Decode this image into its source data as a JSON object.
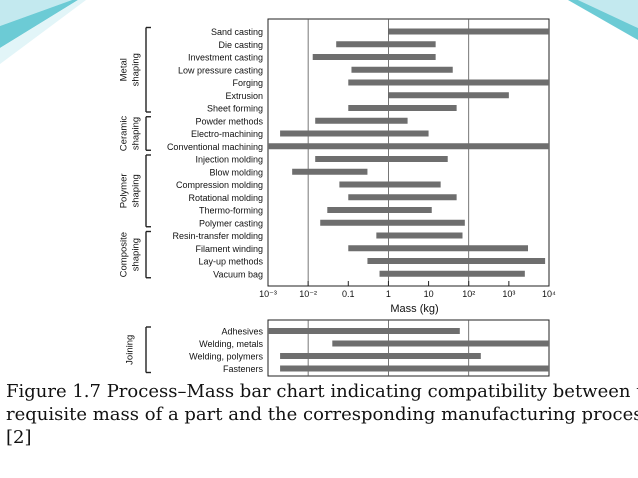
{
  "slide": {
    "caption_lines": [
      "Figure 1.7   Process–Mass bar chart indicating compatibility between t",
      "requisite mass of  a part and the corresponding manufacturing proces",
      "[2]"
    ]
  },
  "colors": {
    "bar": "#6e6e6e",
    "axis": "#222222",
    "accent_teal": "#5bc6d0",
    "accent_light": "#bfe8ee"
  },
  "chart_data": [
    {
      "type": "bar",
      "orientation": "horizontal-range",
      "xscale": "log",
      "xlim": [
        0.001,
        10000
      ],
      "xlabel": "Mass (kg)",
      "xtick_labels": [
        "10⁻³",
        "10⁻²",
        "0.1",
        "1",
        "10",
        "10²",
        "10³",
        "10⁴"
      ],
      "grid": "vertical at 10⁻², 1, 10²",
      "categories": [
        "Sand casting",
        "Die casting",
        "Investment casting",
        "Low pressure casting",
        "Forging",
        "Extrusion",
        "Sheet forming",
        "Powder methods",
        "Electro-machining",
        "Conventional machining",
        "Injection molding",
        "Blow molding",
        "Compression molding",
        "Rotational molding",
        "Thermo-forming",
        "Polymer casting",
        "Resin-transfer molding",
        "Filament winding",
        "Lay-up methods",
        "Vacuum bag"
      ],
      "ranges": [
        [
          1,
          10000
        ],
        [
          0.05,
          15
        ],
        [
          0.013,
          15
        ],
        [
          0.12,
          40
        ],
        [
          0.1,
          10000
        ],
        [
          1,
          1000
        ],
        [
          0.1,
          50
        ],
        [
          0.015,
          3
        ],
        [
          0.002,
          10
        ],
        [
          0.001,
          10000
        ],
        [
          0.015,
          30
        ],
        [
          0.004,
          0.3
        ],
        [
          0.06,
          20
        ],
        [
          0.1,
          50
        ],
        [
          0.03,
          12
        ],
        [
          0.02,
          80
        ],
        [
          0.5,
          70
        ],
        [
          0.1,
          3000
        ],
        [
          0.3,
          8000
        ],
        [
          0.6,
          2500
        ]
      ],
      "groups": [
        {
          "label": "Metal shaping",
          "first": 0,
          "last": 6
        },
        {
          "label": "Ceramic shaping",
          "first": 7,
          "last": 9
        },
        {
          "label": "Polymer shaping",
          "first": 10,
          "last": 15
        },
        {
          "label": "Composite shaping",
          "first": 16,
          "last": 19
        }
      ]
    },
    {
      "type": "bar",
      "orientation": "horizontal-range",
      "xscale": "log",
      "xlim": [
        0.001,
        10000
      ],
      "categories": [
        "Adhesives",
        "Welding, metals",
        "Welding, polymers",
        "Fasteners"
      ],
      "ranges": [
        [
          0.001,
          60
        ],
        [
          0.04,
          10000
        ],
        [
          0.002,
          200
        ],
        [
          0.002,
          10000
        ]
      ],
      "groups": [
        {
          "label": "Joining",
          "first": 0,
          "last": 3
        }
      ]
    }
  ]
}
